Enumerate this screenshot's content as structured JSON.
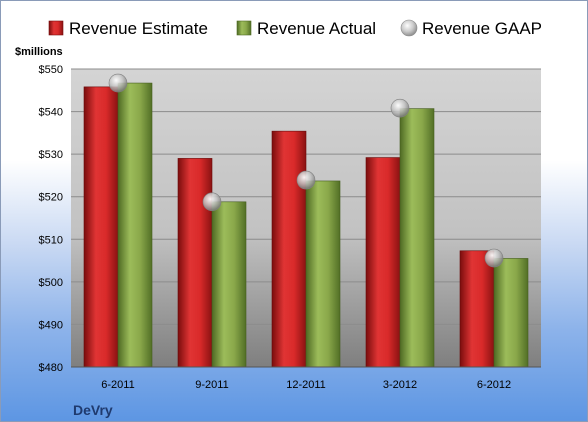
{
  "chart_data": {
    "type": "bar",
    "title": "",
    "unit_label": "$millions",
    "company": "DeVry",
    "categories": [
      "6-2011",
      "9-2011",
      "12-2011",
      "3-2012",
      "6-2012"
    ],
    "ylim": [
      480,
      550
    ],
    "yticks": [
      480,
      490,
      500,
      510,
      520,
      530,
      540,
      550
    ],
    "ytick_labels": [
      "$480",
      "$490",
      "$500",
      "$510",
      "$520",
      "$530",
      "$540",
      "$550"
    ],
    "grid": true,
    "legend_position": "top",
    "series": [
      {
        "name": "Revenue Estimate",
        "kind": "bar",
        "color": "#d42a2a",
        "values": [
          545.8,
          529.0,
          535.4,
          529.2,
          507.3
        ]
      },
      {
        "name": "Revenue Actual",
        "kind": "bar",
        "color": "#8fae4e",
        "values": [
          546.7,
          518.8,
          523.7,
          540.7,
          505.5
        ]
      },
      {
        "name": "Revenue GAAP",
        "kind": "marker",
        "color": "#b8b8b8",
        "values": [
          546.7,
          518.8,
          523.9,
          540.8,
          505.6
        ]
      }
    ]
  }
}
